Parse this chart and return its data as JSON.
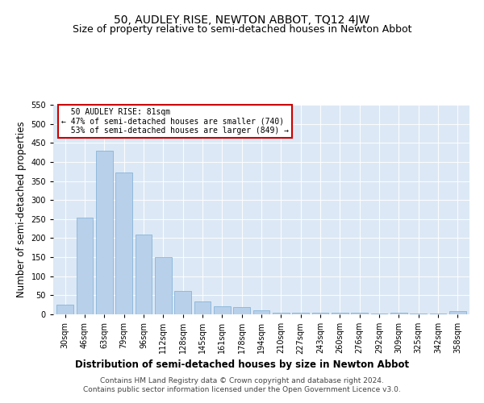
{
  "title": "50, AUDLEY RISE, NEWTON ABBOT, TQ12 4JW",
  "subtitle": "Size of property relative to semi-detached houses in Newton Abbot",
  "xlabel": "Distribution of semi-detached houses by size in Newton Abbot",
  "ylabel": "Number of semi-detached properties",
  "categories": [
    "30sqm",
    "46sqm",
    "63sqm",
    "79sqm",
    "96sqm",
    "112sqm",
    "128sqm",
    "145sqm",
    "161sqm",
    "178sqm",
    "194sqm",
    "210sqm",
    "227sqm",
    "243sqm",
    "260sqm",
    "276sqm",
    "292sqm",
    "309sqm",
    "325sqm",
    "342sqm",
    "358sqm"
  ],
  "values": [
    25,
    253,
    430,
    372,
    210,
    150,
    62,
    33,
    22,
    20,
    10,
    5,
    5,
    5,
    5,
    5,
    2,
    5,
    2,
    3,
    8
  ],
  "subject_label": "50 AUDLEY RISE: 81sqm",
  "pct_smaller": 47,
  "count_smaller": 740,
  "pct_larger": 53,
  "count_larger": 849,
  "ylim": [
    0,
    550
  ],
  "yticks": [
    0,
    50,
    100,
    150,
    200,
    250,
    300,
    350,
    400,
    450,
    500,
    550
  ],
  "background_color": "#dce8f5",
  "bar_fill": "#b8d0ea",
  "bar_edge": "#7aadd4",
  "annotation_box_color": "#cc0000",
  "title_fontsize": 10,
  "subtitle_fontsize": 9,
  "axis_label_fontsize": 8.5,
  "tick_fontsize": 7,
  "footer_fontsize": 6.5,
  "footer_line1": "Contains HM Land Registry data © Crown copyright and database right 2024.",
  "footer_line2": "Contains public sector information licensed under the Open Government Licence v3.0."
}
